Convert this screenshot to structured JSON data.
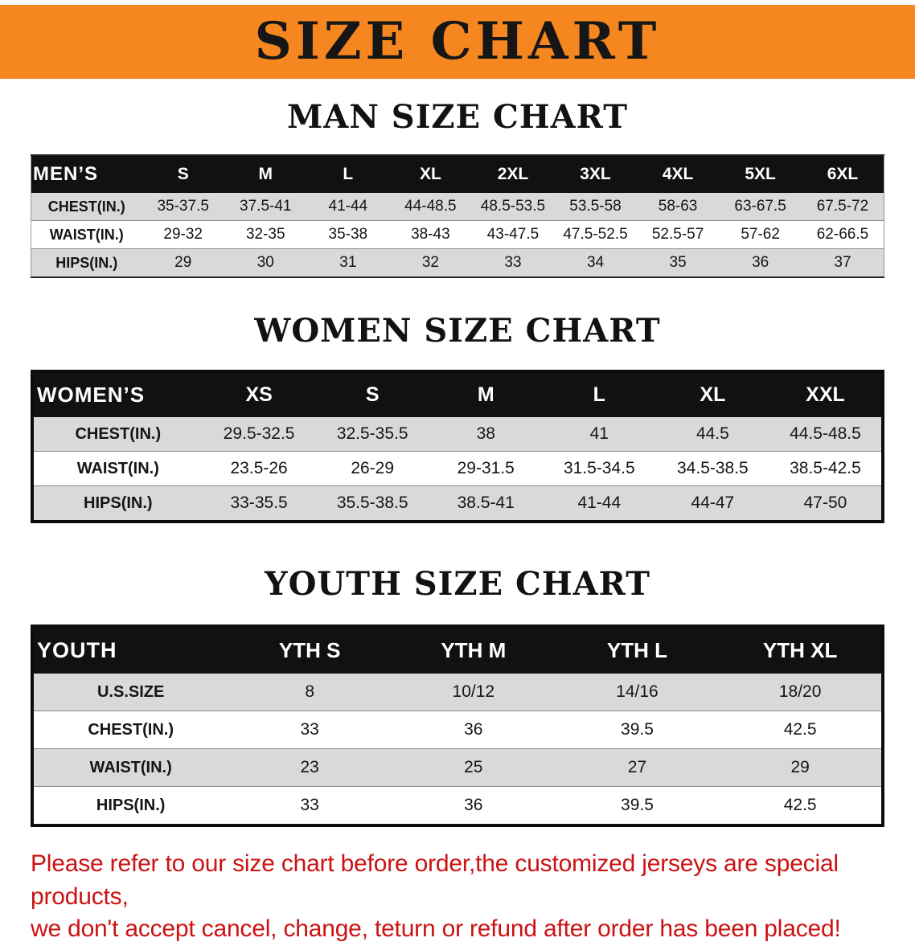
{
  "banner": {
    "title": "SIZE CHART",
    "bg_color": "#F6861F",
    "text_color": "#161616"
  },
  "sections": {
    "men": {
      "heading": "MAN SIZE CHART",
      "table": {
        "header": [
          "MEN’S",
          "S",
          "M",
          "L",
          "XL",
          "2XL",
          "3XL",
          "4XL",
          "5XL",
          "6XL"
        ],
        "rows": [
          {
            "label": "CHEST(IN.)",
            "values": [
              "35-37.5",
              "37.5-41",
              "41-44",
              "44-48.5",
              "48.5-53.5",
              "53.5-58",
              "58-63",
              "63-67.5",
              "67.5-72"
            ]
          },
          {
            "label": "WAIST(IN.)",
            "values": [
              "29-32",
              "32-35",
              "35-38",
              "38-43",
              "43-47.5",
              "47.5-52.5",
              "52.5-57",
              "57-62",
              "62-66.5"
            ]
          },
          {
            "label": "HIPS(IN.)",
            "values": [
              "29",
              "30",
              "31",
              "32",
              "33",
              "34",
              "35",
              "36",
              "37"
            ]
          }
        ]
      }
    },
    "women": {
      "heading": "WOMEN SIZE CHART",
      "table": {
        "header": [
          "WOMEN’S",
          "XS",
          "S",
          "M",
          "L",
          "XL",
          "XXL"
        ],
        "rows": [
          {
            "label": "CHEST(IN.)",
            "values": [
              "29.5-32.5",
              "32.5-35.5",
              "38",
              "41",
              "44.5",
              "44.5-48.5"
            ]
          },
          {
            "label": "WAIST(IN.)",
            "values": [
              "23.5-26",
              "26-29",
              "29-31.5",
              "31.5-34.5",
              "34.5-38.5",
              "38.5-42.5"
            ]
          },
          {
            "label": "HIPS(IN.)",
            "values": [
              "33-35.5",
              "35.5-38.5",
              "38.5-41",
              "41-44",
              "44-47",
              "47-50"
            ]
          }
        ]
      }
    },
    "youth": {
      "heading": "YOUTH SIZE CHART",
      "table": {
        "header": [
          "YOUTH",
          "YTH S",
          "YTH M",
          "YTH L",
          "YTH XL"
        ],
        "rows": [
          {
            "label": "U.S.SIZE",
            "values": [
              "8",
              "10/12",
              "14/16",
              "18/20"
            ]
          },
          {
            "label": "CHEST(IN.)",
            "values": [
              "33",
              "36",
              "39.5",
              "42.5"
            ]
          },
          {
            "label": "WAIST(IN.)",
            "values": [
              "23",
              "25",
              "27",
              "29"
            ]
          },
          {
            "label": "HIPS(IN.)",
            "values": [
              "33",
              "36",
              "39.5",
              "42.5"
            ]
          }
        ]
      }
    }
  },
  "footer": {
    "line1": "Please refer to our size chart before order,the customized jerseys are special products,",
    "line2": "we don't accept cancel, change, teturn or refund after order has been placed!",
    "text_color": "#CC1212"
  },
  "colors": {
    "row_gray": "#D9D9D9",
    "header_black": "#111111"
  }
}
